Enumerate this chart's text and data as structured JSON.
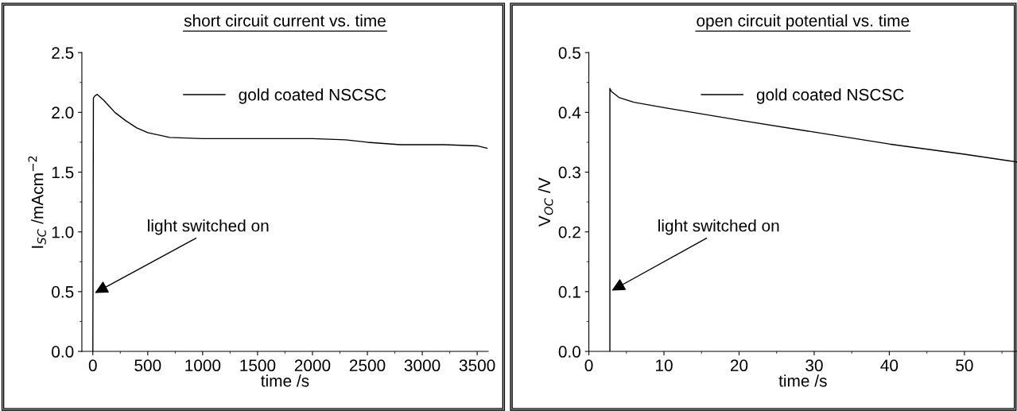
{
  "chart_data": [
    {
      "type": "line",
      "title": "short circuit current vs. time",
      "xlabel": "time /s",
      "ylabel": "I$_{SC}$ /mAcm$^{−2}$",
      "xlim": [
        -100,
        3600
      ],
      "xticks": [
        0,
        500,
        1000,
        1500,
        2000,
        2500,
        3000,
        3500
      ],
      "ylim": [
        0,
        2.5
      ],
      "yticks": [
        {
          "value": 0,
          "label": "0.0"
        },
        0.5,
        {
          "value": 1,
          "label": "1.0"
        },
        1.5,
        {
          "value": 2,
          "label": "2.0"
        },
        2.5
      ],
      "legend": "top",
      "grid": false,
      "series": [
        {
          "name": "gold coated NSCSC",
          "color": "#000000",
          "x": [
            0,
            5,
            20,
            40,
            100,
            150,
            200,
            300,
            400,
            500,
            600,
            700,
            1000,
            1500,
            2000,
            2300,
            2500,
            2800,
            3200,
            3500,
            3590
          ],
          "values": [
            0,
            2.12,
            2.14,
            2.15,
            2.1,
            2.05,
            2.0,
            1.93,
            1.87,
            1.83,
            1.81,
            1.79,
            1.78,
            1.78,
            1.78,
            1.77,
            1.75,
            1.73,
            1.73,
            1.72,
            1.7
          ]
        }
      ],
      "annotations": [
        {
          "text": "light switched on",
          "x": 0,
          "y": 0.48
        }
      ]
    },
    {
      "type": "line",
      "title": "open circuit potential vs. time",
      "xlabel": "time /s",
      "ylabel": "V$_{OC}$ /V",
      "xlim": [
        0,
        57
      ],
      "xticks": [
        0,
        10,
        20,
        30,
        40,
        50
      ],
      "ylim": [
        0,
        0.5
      ],
      "yticks": [
        {
          "value": 0,
          "label": "0.0"
        },
        0.1,
        0.2,
        0.3,
        0.4,
        0.5
      ],
      "legend": "top",
      "grid": false,
      "series": [
        {
          "name": "gold coated NSCSC",
          "color": "#000000",
          "x": [
            2.8,
            2.8,
            3,
            4,
            6,
            10,
            20,
            30,
            40,
            50,
            57
          ],
          "values": [
            0,
            0.44,
            0.435,
            0.425,
            0.417,
            0.408,
            0.387,
            0.367,
            0.347,
            0.33,
            0.317
          ]
        }
      ],
      "annotations": [
        {
          "text": "light switched on",
          "x": 2.8,
          "y": 0.1
        }
      ]
    }
  ]
}
